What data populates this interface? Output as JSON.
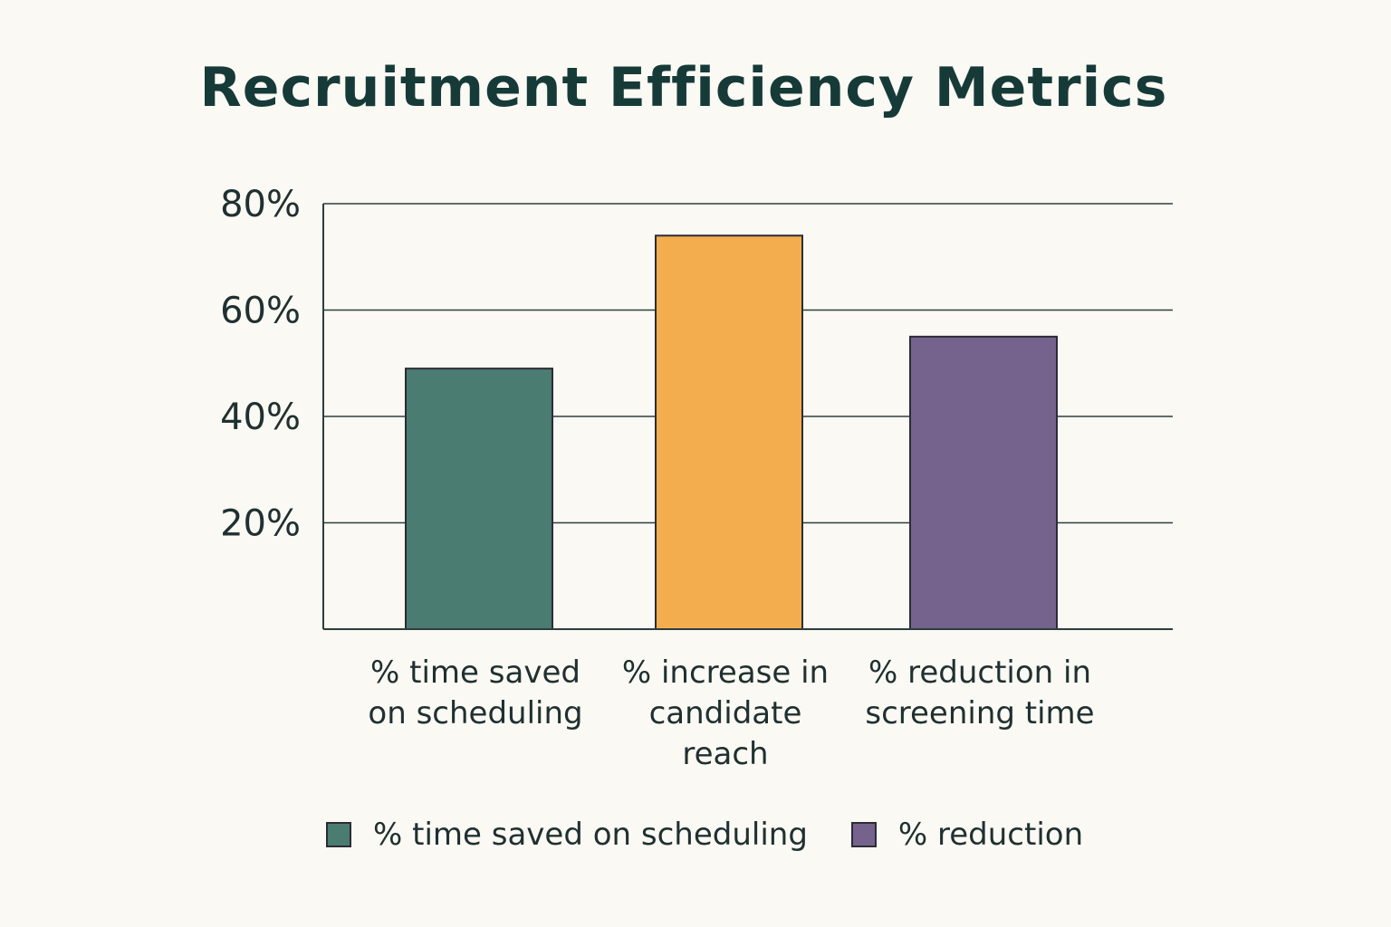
{
  "chart_data": {
    "type": "bar",
    "title": "Recruitment Efficiency Metrics",
    "xlabel": "",
    "ylabel": "",
    "ylim": [
      0,
      80
    ],
    "yticks": [
      20,
      40,
      60,
      80
    ],
    "ytick_labels": [
      "20%",
      "40%",
      "60%",
      "80%"
    ],
    "grid": true,
    "categories": [
      [
        "% time saved",
        "on scheduling"
      ],
      [
        "% increase in",
        "candidate",
        "reach"
      ],
      [
        "% reduction in",
        "screening time"
      ]
    ],
    "values": [
      49,
      74,
      55
    ],
    "colors": [
      "#4a7c72",
      "#f4ad4e",
      "#75638e"
    ],
    "edge_color": "#2c2c35",
    "legend": [
      {
        "label": "% time saved on scheduling",
        "color": "#4a7c72"
      },
      {
        "label": "% reduction",
        "color": "#75638e"
      }
    ]
  }
}
